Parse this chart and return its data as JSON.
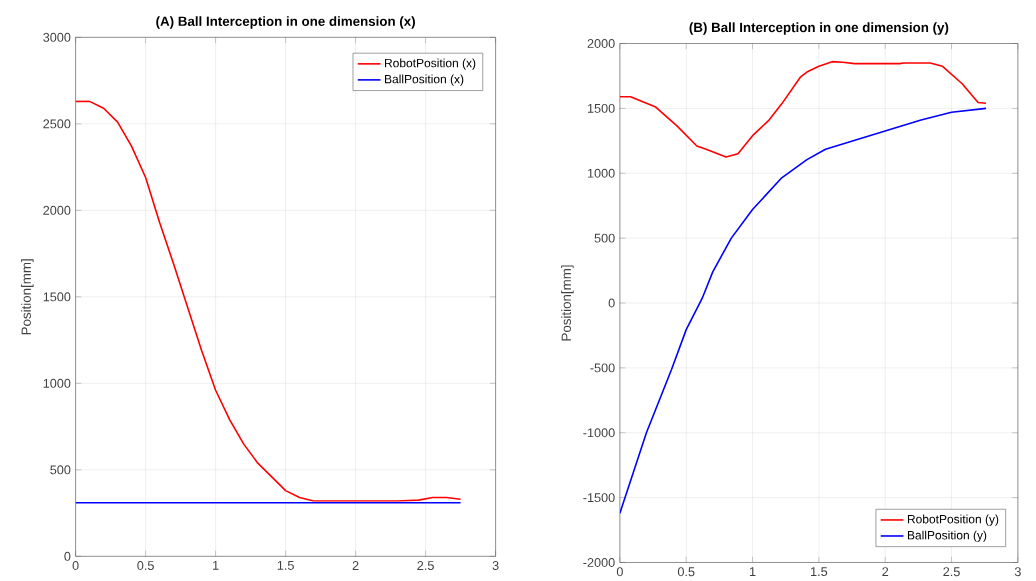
{
  "chart_data": [
    {
      "type": "line",
      "title": "(A) Ball Interception in one dimension (x)",
      "ylabel": "Position[mm]",
      "xlim": [
        0,
        3
      ],
      "xticks": [
        0,
        0.5,
        1,
        1.5,
        2,
        2.5,
        3
      ],
      "ylim": [
        0,
        3000
      ],
      "yticks": [
        0,
        500,
        1000,
        1500,
        2000,
        2500,
        3000
      ],
      "grid": true,
      "legend": "top right",
      "series": [
        {
          "name": "RobotPosition (x)",
          "color": "#ff0000",
          "x": [
            0,
            0.1,
            0.2,
            0.3,
            0.4,
            0.5,
            0.55,
            0.6,
            0.7,
            0.8,
            0.9,
            1.0,
            1.1,
            1.2,
            1.3,
            1.4,
            1.5,
            1.6,
            1.7,
            2.0,
            2.3,
            2.45,
            2.55,
            2.65,
            2.75
          ],
          "values": [
            2630,
            2630,
            2590,
            2510,
            2370,
            2190,
            2060,
            1930,
            1690,
            1440,
            1190,
            960,
            790,
            650,
            540,
            460,
            380,
            340,
            320,
            320,
            320,
            325,
            340,
            340,
            330
          ]
        },
        {
          "name": "BallPosition (x)",
          "color": "#0000ff",
          "x": [
            0,
            2.75
          ],
          "values": [
            310,
            310
          ]
        }
      ]
    },
    {
      "type": "line",
      "title": "(B) Ball Interception in one dimension (y)",
      "ylabel": "Position[mm]",
      "xlim": [
        0,
        3
      ],
      "xticks": [
        0,
        0.5,
        1,
        1.5,
        2,
        2.5,
        3
      ],
      "ylim": [
        -2000,
        2000
      ],
      "yticks": [
        -2000,
        -1500,
        -1000,
        -500,
        0,
        500,
        1000,
        1500,
        2000
      ],
      "grid": true,
      "legend": "bottom right",
      "series": [
        {
          "name": "RobotPosition (y)",
          "color": "#ff0000",
          "x": [
            0,
            0.08,
            0.27,
            0.43,
            0.58,
            0.65,
            0.8,
            0.89,
            1.0,
            1.12,
            1.22,
            1.36,
            1.41,
            1.5,
            1.6,
            1.68,
            1.77,
            2.11,
            2.14,
            2.34,
            2.43,
            2.58,
            2.7,
            2.76
          ],
          "values": [
            1590,
            1590,
            1510,
            1365,
            1210,
            1185,
            1125,
            1150,
            1290,
            1405,
            1535,
            1740,
            1780,
            1825,
            1860,
            1855,
            1845,
            1845,
            1850,
            1850,
            1825,
            1690,
            1545,
            1540
          ]
        },
        {
          "name": "BallPosition (y)",
          "color": "#0000ff",
          "x": [
            0,
            0.2,
            0.39,
            0.5,
            0.62,
            0.7,
            0.84,
            1.0,
            1.22,
            1.41,
            1.55,
            1.79,
            2.03,
            2.27,
            2.5,
            2.76
          ],
          "values": [
            -1620,
            -1000,
            -510,
            -205,
            35,
            240,
            500,
            720,
            965,
            1105,
            1185,
            1260,
            1335,
            1410,
            1470,
            1500
          ]
        }
      ]
    }
  ]
}
